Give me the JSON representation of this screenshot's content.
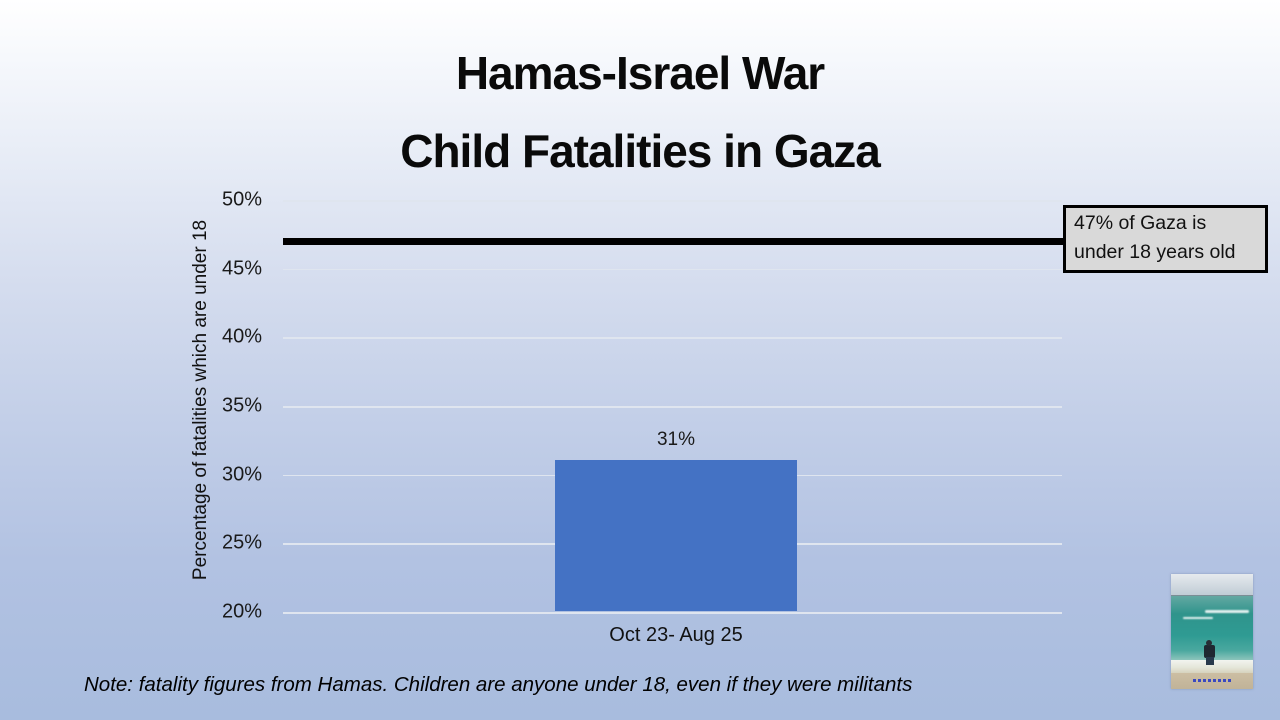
{
  "slide": {
    "title_line1": "Hamas-Israel War",
    "title_line2": "Child Fatalities in Gaza",
    "note": "Note: fatality figures from Hamas. Children are anyone under 18, even if they were militants"
  },
  "chart_data": {
    "type": "bar",
    "categories": [
      "Oct 23- Aug 25"
    ],
    "values": [
      31
    ],
    "bar_labels": [
      "31%"
    ],
    "title": "",
    "xlabel": "",
    "ylabel": "Percentage of fatalities which are under 18",
    "ylim": [
      20,
      50
    ],
    "yticks": [
      50,
      45,
      40,
      35,
      30,
      25,
      20
    ],
    "ytick_labels": [
      "50%",
      "45%",
      "40%",
      "35%",
      "30%",
      "25%",
      "20%"
    ],
    "grid": true,
    "legend": "none",
    "bar_color": "#4472C4",
    "reference_line": {
      "value": 47,
      "color": "#000000",
      "label": "47% of Gaza is under 18 years old"
    }
  },
  "callout": {
    "line1": "47% of Gaza is",
    "line2": "under 18 years old",
    "background": "#d9d9d9",
    "border_color": "#000000"
  },
  "photo": {
    "description": "person standing on beach facing the ocean"
  }
}
